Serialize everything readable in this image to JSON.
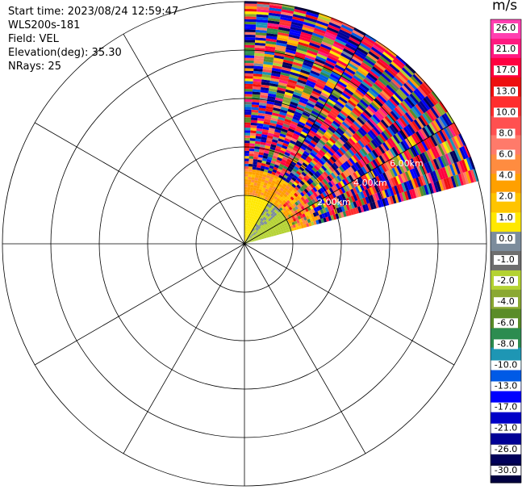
{
  "info": {
    "start_time": "Start time: 2023/08/24 12:59:47",
    "instrument": "WLS200s-181",
    "field": "Field: VEL",
    "elevation": "Elevation(deg): 35.30",
    "nrays": "NRays: 25"
  },
  "colorbar": {
    "title": "m/s",
    "ticks": [
      "26.0",
      "21.0",
      "17.0",
      "13.0",
      "10.0",
      "8.0",
      "6.0",
      "4.0",
      "2.0",
      "1.0",
      "0.0",
      "-1.0",
      "-2.0",
      "-4.0",
      "-6.0",
      "-8.0",
      "-10.0",
      "-13.0",
      "-17.0",
      "-21.0",
      "-26.0",
      "-30.0"
    ],
    "colors": [
      "#ff3fb0",
      "#ff1a80",
      "#ff0040",
      "#ee1010",
      "#ff2e2e",
      "#ff5050",
      "#ff7a6a",
      "#ff8c40",
      "#ffa000",
      "#ffc400",
      "#ffe800",
      "#7c8c9c",
      "#6e6e6e",
      "#b4d232",
      "#8aa832",
      "#5a8c28",
      "#2c8c50",
      "#1e96b4",
      "#005ae6",
      "#0000ff",
      "#0000c8",
      "#000096",
      "#00005a",
      "#000040"
    ]
  },
  "chart_data": {
    "type": "ppi",
    "field": "VEL",
    "units": "m/s",
    "nrays": 25,
    "elevation_deg": 35.3,
    "azimuth_range_deg": [
      0,
      75
    ],
    "range_ring_labels": [
      "2.00km",
      "4.00km",
      "6.00km"
    ],
    "rings": 5,
    "spokes_deg": [
      0,
      30,
      60,
      90,
      120,
      150,
      180,
      210,
      240,
      270,
      300,
      330
    ],
    "near_field": [
      {
        "range": [
          0.0,
          0.45
        ],
        "value": 1.5
      },
      {
        "range": [
          0.45,
          0.7
        ],
        "value": 4.5
      }
    ],
    "color_scale": [
      -30,
      -26,
      -21,
      -17,
      -13,
      -10,
      -8,
      -6,
      -4,
      -2,
      -1,
      0,
      1,
      2,
      4,
      6,
      8,
      10,
      13,
      17,
      21,
      26
    ]
  }
}
